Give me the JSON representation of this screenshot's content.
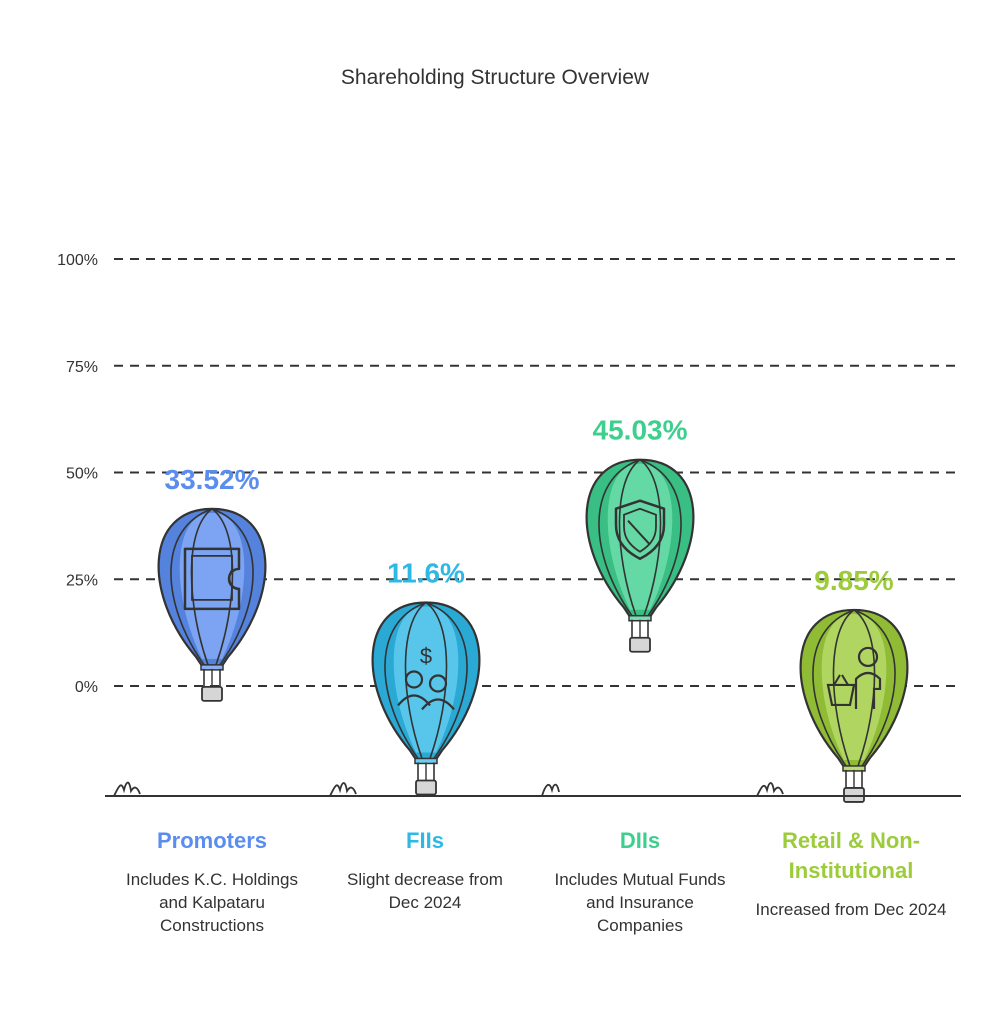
{
  "chart_data": {
    "type": "bar",
    "title": "Shareholding Structure Overview",
    "ylim": [
      0,
      100
    ],
    "y_ticks": [
      {
        "value": 0,
        "label": "0%"
      },
      {
        "value": 25,
        "label": "25%"
      },
      {
        "value": 50,
        "label": "50%"
      },
      {
        "value": 75,
        "label": "75%"
      },
      {
        "value": 100,
        "label": "100%"
      }
    ],
    "grid": true,
    "categories": [
      "Promoters",
      "FIIs",
      "DIIs",
      "Retail & Non-Institutional"
    ],
    "values": [
      33.52,
      11.6,
      45.03,
      9.85
    ],
    "value_labels": [
      "33.52%",
      "11.6%",
      "45.03%",
      "9.85%"
    ],
    "descriptions": [
      "Includes K.C. Holdings and Kalpataru Constructions",
      "Slight decrease from Dec 2024",
      "Includes Mutual Funds and Insurance Companies",
      "Increased from Dec 2024"
    ],
    "icons": [
      "puzzle-piece-icon",
      "investors-dollar-icon",
      "shield-icon",
      "shopper-basket-icon"
    ],
    "colors": [
      "#5b8def",
      "#2eb8e6",
      "#3ecf8e",
      "#9ccc3a"
    ]
  }
}
